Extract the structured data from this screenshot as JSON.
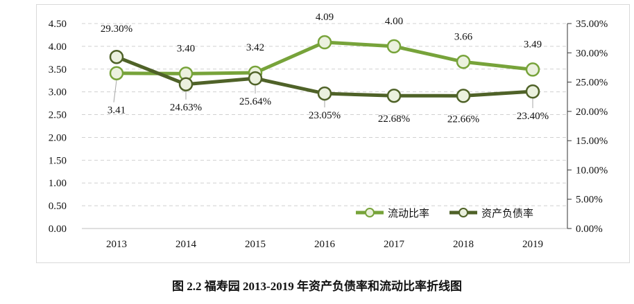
{
  "chart_data": {
    "type": "line",
    "title": "",
    "categories": [
      "2013",
      "2014",
      "2015",
      "2016",
      "2017",
      "2018",
      "2019"
    ],
    "y_left": {
      "ylim": [
        0,
        4.5
      ],
      "ticks": [
        "0.00",
        "0.50",
        "1.00",
        "1.50",
        "2.00",
        "2.50",
        "3.00",
        "3.50",
        "4.00",
        "4.50"
      ]
    },
    "y_right": {
      "ylim": [
        0,
        35
      ],
      "ticks": [
        "0.00%",
        "5.00%",
        "10.00%",
        "15.00%",
        "20.00%",
        "25.00%",
        "30.00%",
        "35.00%"
      ]
    },
    "grid": true,
    "legend_position": "bottom-right",
    "series": [
      {
        "name": "流动比率",
        "axis": "left",
        "color": "#77a33a",
        "values": [
          3.41,
          3.4,
          3.42,
          4.09,
          4.0,
          3.66,
          3.49
        ],
        "labels": [
          "3.41",
          "3.40",
          "3.42",
          "4.09",
          "4.00",
          "3.66",
          "3.49"
        ]
      },
      {
        "name": "资产负债率",
        "axis": "right",
        "color": "#4f6228",
        "values": [
          29.3,
          24.63,
          25.64,
          23.05,
          22.68,
          22.66,
          23.4
        ],
        "labels": [
          "29.30%",
          "24.63%",
          "25.64%",
          "23.05%",
          "22.68%",
          "22.66%",
          "23.40%"
        ]
      }
    ],
    "marker_fill": "#ebf1de"
  },
  "caption": "图 2.2    福寿园 2013-2019 年资产负债率和流动比率折线图"
}
